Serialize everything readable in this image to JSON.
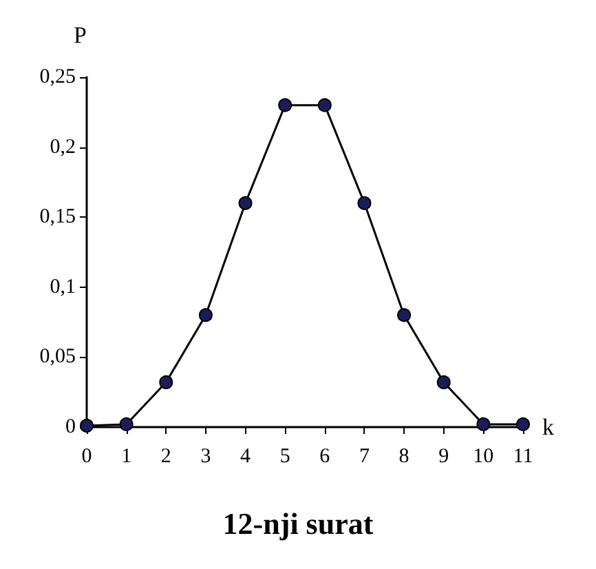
{
  "chart_data": {
    "type": "line",
    "x": [
      0,
      1,
      2,
      3,
      4,
      5,
      6,
      7,
      8,
      9,
      10,
      11
    ],
    "series": [
      {
        "color": "#1c1c5a",
        "values": [
          0.001,
          0.002,
          0.032,
          0.08,
          0.16,
          0.23,
          0.23,
          0.16,
          0.08,
          0.032,
          0.002,
          0.002
        ]
      }
    ],
    "xlim": [
      0,
      11
    ],
    "xticks": [
      0,
      1,
      2,
      3,
      4,
      5,
      6,
      7,
      8,
      9,
      10,
      11
    ],
    "ylim": [
      0,
      0.25
    ],
    "yticks": [
      {
        "value": 0,
        "label": "0"
      },
      {
        "value": 0.05,
        "label": "0,05"
      },
      {
        "value": 0.1,
        "label": "0,1"
      },
      {
        "value": 0.15,
        "label": "0,15"
      },
      {
        "value": 0.2,
        "label": "0,2"
      },
      {
        "value": 0.25,
        "label": "0,25"
      }
    ],
    "xlabel": "k",
    "ylabel": "P",
    "annotations": [
      "12-nji surat"
    ],
    "grid": false,
    "marker": "circle",
    "line_style": "solid"
  }
}
